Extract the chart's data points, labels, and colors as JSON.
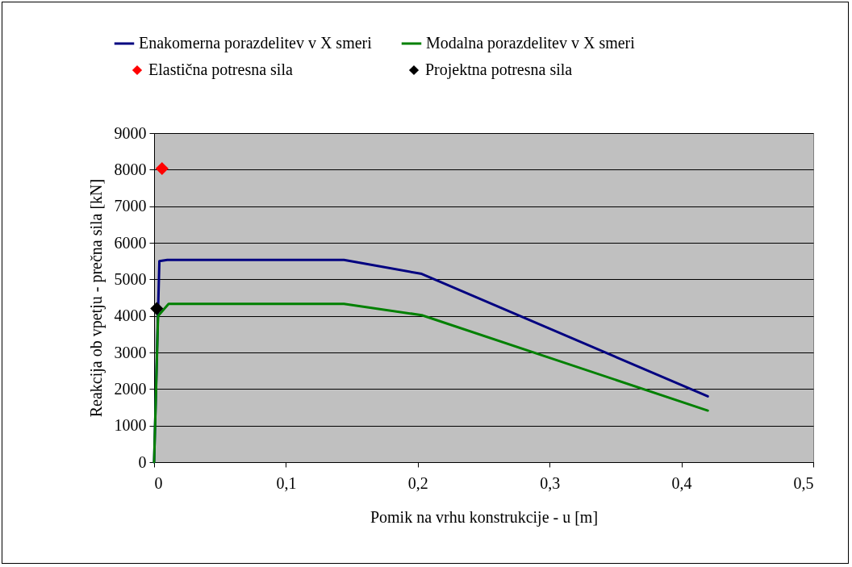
{
  "chart_data": {
    "type": "line",
    "xlabel": "Pomik na vrhu konstrukcije - u  [m]",
    "ylabel": "Reakcija ob vpetju - prečna sila  [kN]",
    "xlim": [
      0,
      0.5
    ],
    "xticks": [
      0,
      {
        "value": 0.1,
        "label": "0,1"
      },
      {
        "value": 0.2,
        "label": "0,2"
      },
      {
        "value": 0.3,
        "label": "0,3"
      },
      {
        "value": 0.4,
        "label": "0,4"
      },
      {
        "value": 0.5,
        "label": "0,5"
      }
    ],
    "ylim": [
      0,
      9000
    ],
    "yticks": [
      0,
      1000,
      2000,
      3000,
      4000,
      5000,
      6000,
      7000,
      8000,
      9000
    ],
    "grid": "y",
    "legend": "top",
    "marker": "none",
    "line_style": "solid",
    "series": [
      {
        "name": "Enakomerna porazdelitev v X smeri",
        "color": "#000080",
        "x": [
          0,
          0.004,
          0.01,
          0.144,
          0.203,
          0.42
        ],
        "values": [
          0,
          5500,
          5530,
          5530,
          5150,
          1800
        ]
      },
      {
        "name": "Modalna porazdelitev v X smeri",
        "color": "#008000",
        "x": [
          0,
          0.003,
          0.011,
          0.144,
          0.203,
          0.42
        ],
        "values": [
          0,
          4000,
          4330,
          4330,
          4020,
          1410
        ]
      },
      {
        "name": "Elastična potresna sila",
        "type": "scatter",
        "marker": "diamond",
        "color": "#ff0000",
        "x": [
          0.006
        ],
        "values": [
          8030
        ]
      },
      {
        "name": "Projektna potresna sila",
        "type": "scatter",
        "marker": "diamond",
        "color": "#000000",
        "x": [
          0.002
        ],
        "values": [
          4200
        ]
      }
    ]
  }
}
